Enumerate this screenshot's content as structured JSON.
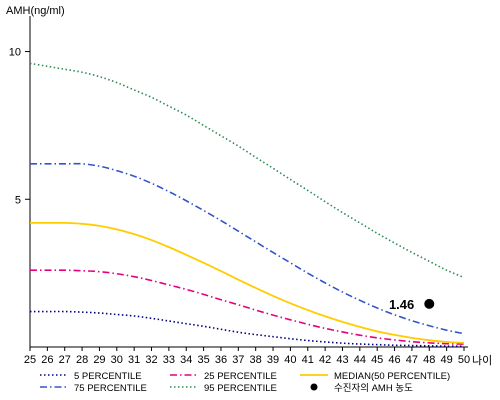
{
  "chart_data": {
    "type": "line",
    "ylabel": "AMH(ng/ml)",
    "xlabel": "나이",
    "xlim": [
      25,
      50
    ],
    "ylim": [
      0,
      11
    ],
    "yticks": [
      5,
      10
    ],
    "x": [
      25,
      26,
      27,
      28,
      29,
      30,
      31,
      32,
      33,
      34,
      35,
      36,
      37,
      38,
      39,
      40,
      41,
      42,
      43,
      44,
      45,
      46,
      47,
      48,
      49,
      50
    ],
    "series": [
      {
        "name": "5 PERCENTILE",
        "color": "#000080",
        "dash": "dot",
        "values": [
          1.2,
          1.2,
          1.2,
          1.18,
          1.15,
          1.1,
          1.05,
          0.97,
          0.88,
          0.79,
          0.7,
          0.6,
          0.5,
          0.42,
          0.35,
          0.28,
          0.22,
          0.17,
          0.13,
          0.1,
          0.08,
          0.06,
          0.05,
          0.04,
          0.03,
          0.03
        ]
      },
      {
        "name": "25 PERCENTILE",
        "color": "#e6007e",
        "dash": "dashdot",
        "values": [
          2.6,
          2.6,
          2.6,
          2.58,
          2.55,
          2.48,
          2.38,
          2.25,
          2.1,
          1.95,
          1.78,
          1.6,
          1.43,
          1.25,
          1.08,
          0.92,
          0.77,
          0.63,
          0.51,
          0.4,
          0.31,
          0.24,
          0.18,
          0.14,
          0.11,
          0.1
        ]
      },
      {
        "name": "MEDIAN(50 PERCENTILE)",
        "color": "#ffcc00",
        "dash": "solid",
        "values": [
          4.2,
          4.2,
          4.2,
          4.17,
          4.1,
          3.98,
          3.82,
          3.62,
          3.38,
          3.12,
          2.85,
          2.57,
          2.28,
          2.0,
          1.73,
          1.48,
          1.25,
          1.04,
          0.85,
          0.68,
          0.53,
          0.41,
          0.31,
          0.23,
          0.17,
          0.14
        ]
      },
      {
        "name": "75 PERCENTILE",
        "color": "#3355cc",
        "dash": "dashdot",
        "values": [
          6.2,
          6.2,
          6.2,
          6.2,
          6.12,
          5.97,
          5.78,
          5.54,
          5.26,
          4.95,
          4.62,
          4.28,
          3.92,
          3.56,
          3.2,
          2.85,
          2.5,
          2.17,
          1.86,
          1.58,
          1.32,
          1.09,
          0.89,
          0.72,
          0.57,
          0.45
        ]
      },
      {
        "name": "95 PERCENTILE",
        "color": "#2e8b57",
        "dash": "dot",
        "values": [
          9.6,
          9.5,
          9.4,
          9.3,
          9.15,
          8.95,
          8.7,
          8.45,
          8.15,
          7.85,
          7.5,
          7.15,
          6.8,
          6.42,
          6.05,
          5.67,
          5.3,
          4.92,
          4.55,
          4.2,
          3.85,
          3.52,
          3.2,
          2.9,
          2.6,
          2.35
        ]
      }
    ],
    "highlight_point": {
      "name": "수진자의 AMH 농도",
      "x": 48,
      "y": 1.46,
      "label": "1.46",
      "color": "#000000"
    },
    "legend": {
      "placement": "bottom",
      "order": [
        "5 PERCENTILE",
        "25 PERCENTILE",
        "MEDIAN(50 PERCENTILE)",
        "75 PERCENTILE",
        "95 PERCENTILE",
        "수진자의 AMH 농도"
      ]
    },
    "grid": false
  }
}
